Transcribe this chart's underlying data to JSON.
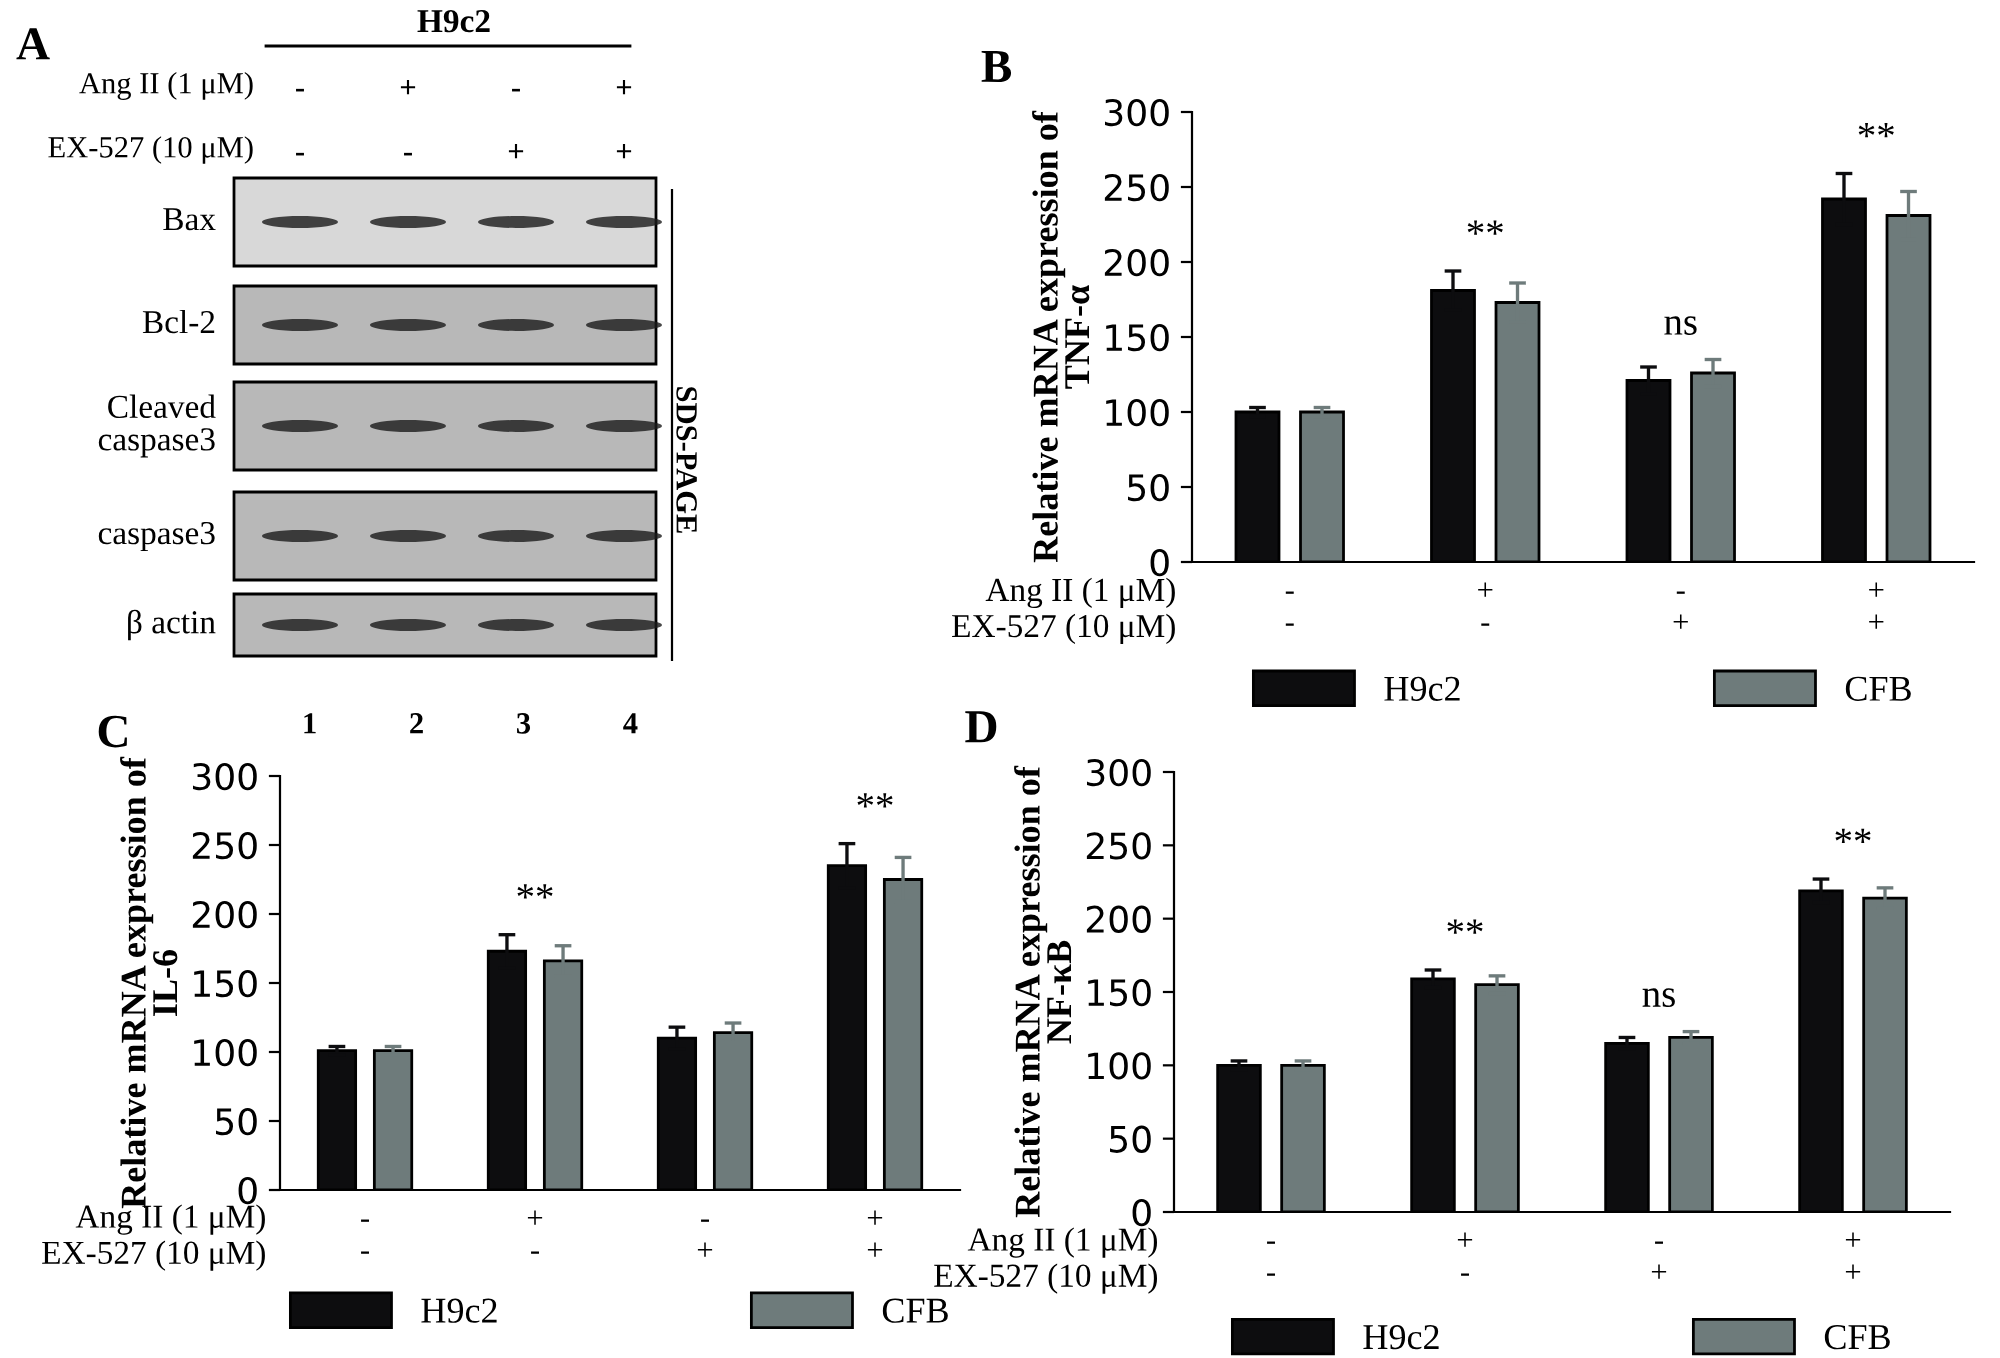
{
  "chart_data": [
    {
      "type": "other",
      "title": "A",
      "subtitle": "H9c2",
      "y_categories": [
        "Bax",
        "Bcl-2",
        "Cleaved\ncaspase3",
        "caspase3",
        "β actin"
      ],
      "annotations": [
        "Ang II (1 μM)",
        "-",
        "+",
        "-",
        "+",
        "EX-527 (10 μM)",
        "-",
        "-",
        "+",
        "+",
        "SDS-PAGE",
        "1            2            3            4"
      ]
    },
    {
      "type": "bar",
      "title": "B",
      "ylabel": "Relative mRNA expression of\nTNF-α",
      "xlabel": "Ang II (1 μM)\nEX-527 (10 μM)",
      "categories": [
        "-\n-",
        "+\n-",
        "-\n+",
        "+\n+"
      ],
      "ylim": [
        0,
        300
      ],
      "yticks": [
        0,
        50,
        100,
        150,
        200,
        250,
        300
      ],
      "grid": false,
      "legend": "bottom",
      "series": [
        {
          "name": "H9c2",
          "color": "#0d0d0f",
          "values": [
            100,
            181,
            121,
            242
          ],
          "errors": [
            3,
            13,
            9,
            17
          ]
        },
        {
          "name": "CFB",
          "color": "#6e7b7b",
          "values": [
            100,
            173,
            126,
            231
          ],
          "errors": [
            3,
            13,
            9,
            16
          ]
        }
      ],
      "annotations": [
        null,
        "**",
        "ns",
        "**"
      ]
    },
    {
      "type": "bar",
      "title": "C",
      "ylabel": "Relative mRNA expression of\nIL-6",
      "xlabel": "Ang II (1 μM)\nEX-527 (10 μM)",
      "categories": [
        "-\n-",
        "+\n-",
        "-\n+",
        "+\n+"
      ],
      "ylim": [
        0,
        300
      ],
      "yticks": [
        0,
        50,
        100,
        150,
        200,
        250,
        300
      ],
      "grid": false,
      "legend": "bottom",
      "series": [
        {
          "name": "H9c2",
          "color": "#0d0d0f",
          "values": [
            101,
            173,
            110,
            235
          ],
          "errors": [
            3,
            12,
            8,
            16
          ]
        },
        {
          "name": "CFB",
          "color": "#6e7b7b",
          "values": [
            101,
            166,
            114,
            225
          ],
          "errors": [
            3,
            11,
            7,
            16
          ]
        }
      ],
      "annotations": [
        null,
        "**",
        null,
        "**"
      ]
    },
    {
      "type": "bar",
      "title": "D",
      "ylabel": "Relative mRNA expression of\nNF-κB",
      "xlabel": "Ang II (1 μM)\nEX-527 (10 μM)",
      "categories": [
        "-\n-",
        "+\n-",
        "-\n+",
        "+\n+"
      ],
      "ylim": [
        0,
        300
      ],
      "yticks": [
        0,
        50,
        100,
        150,
        200,
        250,
        300
      ],
      "grid": false,
      "legend": "bottom",
      "series": [
        {
          "name": "H9c2",
          "color": "#0d0d0f",
          "values": [
            100,
            159,
            115,
            219
          ],
          "errors": [
            3,
            6,
            4,
            8
          ]
        },
        {
          "name": "CFB",
          "color": "#6e7b7b",
          "values": [
            100,
            155,
            119,
            214
          ],
          "errors": [
            3,
            6,
            4,
            7
          ]
        }
      ],
      "annotations": [
        null,
        "**",
        "ns",
        "**"
      ]
    }
  ]
}
